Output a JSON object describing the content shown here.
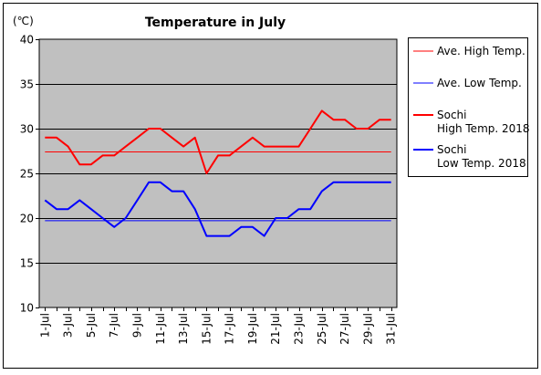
{
  "chart_data": {
    "type": "line",
    "title": "Temperature in July",
    "unit_label": "(℃)",
    "ylim": [
      10,
      40
    ],
    "yticks": [
      10,
      15,
      20,
      25,
      30,
      35,
      40
    ],
    "x": [
      "1-Jul",
      "2-Jul",
      "3-Jul",
      "4-Jul",
      "5-Jul",
      "6-Jul",
      "7-Jul",
      "8-Jul",
      "9-Jul",
      "10-Jul",
      "11-Jul",
      "12-Jul",
      "13-Jul",
      "14-Jul",
      "15-Jul",
      "16-Jul",
      "17-Jul",
      "18-Jul",
      "19-Jul",
      "20-Jul",
      "21-Jul",
      "22-Jul",
      "23-Jul",
      "24-Jul",
      "25-Jul",
      "26-Jul",
      "27-Jul",
      "28-Jul",
      "29-Jul",
      "30-Jul",
      "31-Jul"
    ],
    "xtick_labels": [
      "1-Jul",
      "3-Jul",
      "5-Jul",
      "7-Jul",
      "9-Jul",
      "11-Jul",
      "13-Jul",
      "15-Jul",
      "17-Jul",
      "19-Jul",
      "21-Jul",
      "23-Jul",
      "25-Jul",
      "27-Jul",
      "29-Jul",
      "31-Jul"
    ],
    "grid": true,
    "plot_background": "#c0c0c0",
    "legend_position": "right",
    "series": [
      {
        "name": "Ave. High Temp.",
        "color": "#ff0000",
        "style": "thin",
        "values": [
          27.4,
          27.4,
          27.4,
          27.4,
          27.4,
          27.4,
          27.4,
          27.4,
          27.4,
          27.4,
          27.4,
          27.4,
          27.4,
          27.4,
          27.4,
          27.4,
          27.4,
          27.4,
          27.4,
          27.4,
          27.4,
          27.4,
          27.4,
          27.4,
          27.4,
          27.4,
          27.4,
          27.4,
          27.4,
          27.4,
          27.4
        ]
      },
      {
        "name": "Ave. Low Temp.",
        "color": "#0000ff",
        "style": "thin",
        "values": [
          19.7,
          19.7,
          19.7,
          19.7,
          19.7,
          19.7,
          19.7,
          19.7,
          19.7,
          19.7,
          19.7,
          19.7,
          19.7,
          19.7,
          19.7,
          19.7,
          19.7,
          19.7,
          19.7,
          19.7,
          19.7,
          19.7,
          19.7,
          19.7,
          19.7,
          19.7,
          19.7,
          19.7,
          19.7,
          19.7,
          19.7
        ]
      },
      {
        "name": "Sochi High Temp. 2018",
        "legend_lines": [
          "Sochi",
          "High Temp. 2018"
        ],
        "color": "#ff0000",
        "style": "thick",
        "values": [
          29,
          29,
          28,
          26,
          26,
          27,
          27,
          28,
          29,
          30,
          30,
          29,
          28,
          29,
          25,
          27,
          27,
          28,
          29,
          28,
          28,
          28,
          28,
          30,
          32,
          31,
          31,
          30,
          30,
          31,
          31
        ]
      },
      {
        "name": "Sochi Low Temp. 2018",
        "legend_lines": [
          "Sochi",
          "Low Temp. 2018"
        ],
        "color": "#0000ff",
        "style": "thick",
        "values": [
          22,
          21,
          21,
          22,
          21,
          20,
          19,
          20,
          22,
          24,
          24,
          23,
          23,
          21,
          18,
          18,
          18,
          19,
          19,
          18,
          20,
          20,
          21,
          21,
          23,
          24,
          24,
          24,
          24,
          24,
          24
        ]
      }
    ]
  }
}
